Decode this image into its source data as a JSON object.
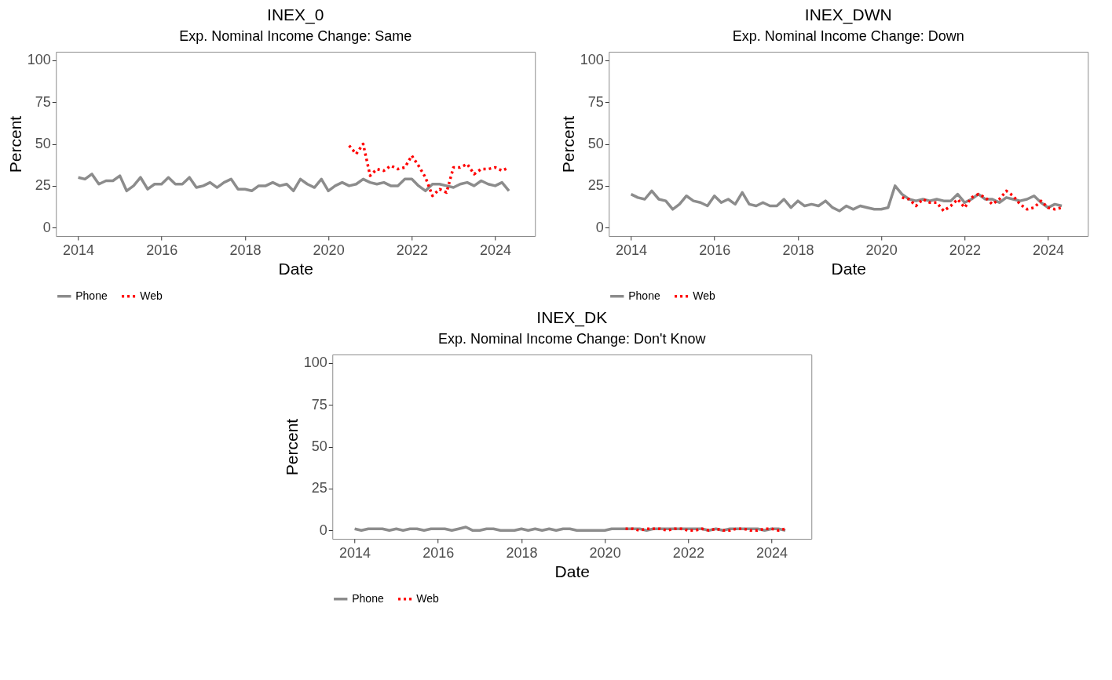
{
  "chart_data": [
    {
      "type": "line",
      "title": "INEX_0",
      "subtitle": "Exp. Nominal Income Change: Same",
      "xlabel": "Date",
      "ylabel": "Percent",
      "xlim": [
        "2013-06-20",
        "2024-12-15"
      ],
      "xticks": [
        "2014",
        "2016",
        "2018",
        "2020",
        "2022",
        "2024"
      ],
      "ylim": [
        -5,
        105
      ],
      "yticks": [
        0,
        25,
        50,
        75,
        100
      ],
      "grid": false,
      "legend": "bottom",
      "x": [
        "2014-01",
        "2014-03",
        "2014-05",
        "2014-07",
        "2014-09",
        "2014-11",
        "2015-01",
        "2015-03",
        "2015-05",
        "2015-07",
        "2015-09",
        "2015-11",
        "2016-01",
        "2016-03",
        "2016-05",
        "2016-07",
        "2016-09",
        "2016-11",
        "2017-01",
        "2017-03",
        "2017-05",
        "2017-07",
        "2017-09",
        "2017-11",
        "2018-01",
        "2018-03",
        "2018-05",
        "2018-07",
        "2018-09",
        "2018-11",
        "2019-01",
        "2019-03",
        "2019-05",
        "2019-07",
        "2019-09",
        "2019-11",
        "2020-01",
        "2020-03",
        "2020-05",
        "2020-07",
        "2020-09",
        "2020-11",
        "2021-01",
        "2021-03",
        "2021-05",
        "2021-07",
        "2021-09",
        "2021-11",
        "2022-01",
        "2022-03",
        "2022-05",
        "2022-07",
        "2022-09",
        "2022-11",
        "2023-01",
        "2023-03",
        "2023-05",
        "2023-07",
        "2023-09",
        "2023-11",
        "2024-01",
        "2024-03",
        "2024-05"
      ],
      "series": [
        {
          "name": "Phone",
          "color": "#8c8c8c",
          "line_style": "solid",
          "values": [
            30,
            29,
            32,
            26,
            28,
            28,
            31,
            22,
            25,
            30,
            23,
            26,
            26,
            30,
            26,
            26,
            30,
            24,
            25,
            27,
            24,
            27,
            29,
            23,
            23,
            22,
            25,
            25,
            27,
            25,
            26,
            22,
            29,
            26,
            24,
            29,
            22,
            25,
            27,
            25,
            26,
            29,
            27,
            26,
            27,
            25,
            25,
            29,
            29,
            25,
            22,
            26,
            26,
            25,
            24,
            26,
            27,
            25,
            28,
            26,
            25,
            27,
            22
          ]
        },
        {
          "name": "Web",
          "color": "#ff0000",
          "line_style": "dotted",
          "x": [
            "2020-07",
            "2020-09",
            "2020-11",
            "2021-01",
            "2021-03",
            "2021-05",
            "2021-07",
            "2021-09",
            "2021-11",
            "2022-01",
            "2022-03",
            "2022-05",
            "2022-07",
            "2022-09",
            "2022-11",
            "2023-01",
            "2023-03",
            "2023-05",
            "2023-07",
            "2023-09",
            "2023-11",
            "2024-01",
            "2024-03",
            "2024-05"
          ],
          "values": [
            49,
            44,
            50,
            31,
            35,
            34,
            37,
            35,
            36,
            43,
            37,
            30,
            19,
            23,
            21,
            36,
            36,
            38,
            32,
            35,
            35,
            36,
            34,
            36
          ]
        }
      ]
    },
    {
      "type": "line",
      "title": "INEX_DWN",
      "subtitle": "Exp. Nominal Income Change: Down",
      "xlabel": "Date",
      "ylabel": "Percent",
      "xlim": [
        "2013-06-20",
        "2024-12-15"
      ],
      "xticks": [
        "2014",
        "2016",
        "2018",
        "2020",
        "2022",
        "2024"
      ],
      "ylim": [
        -5,
        105
      ],
      "yticks": [
        0,
        25,
        50,
        75,
        100
      ],
      "grid": false,
      "legend": "bottom",
      "x": [
        "2014-01",
        "2014-03",
        "2014-05",
        "2014-07",
        "2014-09",
        "2014-11",
        "2015-01",
        "2015-03",
        "2015-05",
        "2015-07",
        "2015-09",
        "2015-11",
        "2016-01",
        "2016-03",
        "2016-05",
        "2016-07",
        "2016-09",
        "2016-11",
        "2017-01",
        "2017-03",
        "2017-05",
        "2017-07",
        "2017-09",
        "2017-11",
        "2018-01",
        "2018-03",
        "2018-05",
        "2018-07",
        "2018-09",
        "2018-11",
        "2019-01",
        "2019-03",
        "2019-05",
        "2019-07",
        "2019-09",
        "2019-11",
        "2020-01",
        "2020-03",
        "2020-05",
        "2020-07",
        "2020-09",
        "2020-11",
        "2021-01",
        "2021-03",
        "2021-05",
        "2021-07",
        "2021-09",
        "2021-11",
        "2022-01",
        "2022-03",
        "2022-05",
        "2022-07",
        "2022-09",
        "2022-11",
        "2023-01",
        "2023-03",
        "2023-05",
        "2023-07",
        "2023-09",
        "2023-11",
        "2024-01",
        "2024-03",
        "2024-05"
      ],
      "series": [
        {
          "name": "Phone",
          "color": "#8c8c8c",
          "line_style": "solid",
          "values": [
            20,
            18,
            17,
            22,
            17,
            16,
            11,
            14,
            19,
            16,
            15,
            13,
            19,
            15,
            17,
            14,
            21,
            14,
            13,
            15,
            13,
            13,
            17,
            12,
            16,
            13,
            14,
            13,
            16,
            12,
            10,
            13,
            11,
            13,
            12,
            11,
            11,
            12,
            25,
            20,
            17,
            16,
            17,
            16,
            17,
            16,
            16,
            20,
            15,
            17,
            20,
            17,
            17,
            15,
            18,
            17,
            16,
            17,
            19,
            15,
            12,
            14,
            13
          ]
        },
        {
          "name": "Web",
          "color": "#ff0000",
          "line_style": "dotted",
          "x": [
            "2020-07",
            "2020-09",
            "2020-11",
            "2021-01",
            "2021-03",
            "2021-05",
            "2021-07",
            "2021-09",
            "2021-11",
            "2022-01",
            "2022-03",
            "2022-05",
            "2022-07",
            "2022-09",
            "2022-11",
            "2023-01",
            "2023-03",
            "2023-05",
            "2023-07",
            "2023-09",
            "2023-11",
            "2024-01",
            "2024-03",
            "2024-05"
          ],
          "values": [
            18,
            17,
            13,
            17,
            15,
            15,
            10,
            13,
            17,
            12,
            18,
            20,
            18,
            14,
            17,
            22,
            19,
            14,
            11,
            12,
            16,
            12,
            11,
            12
          ]
        }
      ]
    },
    {
      "type": "line",
      "title": "INEX_DK",
      "subtitle": "Exp. Nominal Income Change: Don't Know",
      "xlabel": "Date",
      "ylabel": "Percent",
      "xlim": [
        "2013-06-20",
        "2024-12-15"
      ],
      "xticks": [
        "2014",
        "2016",
        "2018",
        "2020",
        "2022",
        "2024"
      ],
      "ylim": [
        -5,
        105
      ],
      "yticks": [
        0,
        25,
        50,
        75,
        100
      ],
      "grid": false,
      "legend": "bottom",
      "x": [
        "2014-01",
        "2014-03",
        "2014-05",
        "2014-07",
        "2014-09",
        "2014-11",
        "2015-01",
        "2015-03",
        "2015-05",
        "2015-07",
        "2015-09",
        "2015-11",
        "2016-01",
        "2016-03",
        "2016-05",
        "2016-07",
        "2016-09",
        "2016-11",
        "2017-01",
        "2017-03",
        "2017-05",
        "2017-07",
        "2017-09",
        "2017-11",
        "2018-01",
        "2018-03",
        "2018-05",
        "2018-07",
        "2018-09",
        "2018-11",
        "2019-01",
        "2019-03",
        "2019-05",
        "2019-07",
        "2019-09",
        "2019-11",
        "2020-01",
        "2020-03",
        "2020-05",
        "2020-07",
        "2020-09",
        "2020-11",
        "2021-01",
        "2021-03",
        "2021-05",
        "2021-07",
        "2021-09",
        "2021-11",
        "2022-01",
        "2022-03",
        "2022-05",
        "2022-07",
        "2022-09",
        "2022-11",
        "2023-01",
        "2023-03",
        "2023-05",
        "2023-07",
        "2023-09",
        "2023-11",
        "2024-01",
        "2024-03",
        "2024-05"
      ],
      "series": [
        {
          "name": "Phone",
          "color": "#8c8c8c",
          "line_style": "solid",
          "values": [
            1,
            0,
            1,
            1,
            1,
            0,
            1,
            0,
            1,
            1,
            0,
            1,
            1,
            1,
            0,
            1,
            2,
            0,
            0,
            1,
            1,
            0,
            0,
            0,
            1,
            0,
            1,
            0,
            1,
            0,
            1,
            1,
            0,
            0,
            0,
            0,
            0,
            1,
            1,
            1,
            1,
            1,
            0,
            1,
            1,
            1,
            1,
            1,
            1,
            1,
            1,
            0,
            1,
            0,
            1,
            1,
            1,
            1,
            1,
            0,
            1,
            1,
            0
          ]
        },
        {
          "name": "Web",
          "color": "#ff0000",
          "line_style": "dotted",
          "x": [
            "2020-07",
            "2020-09",
            "2020-11",
            "2021-01",
            "2021-03",
            "2021-05",
            "2021-07",
            "2021-09",
            "2021-11",
            "2022-01",
            "2022-03",
            "2022-05",
            "2022-07",
            "2022-09",
            "2022-11",
            "2023-01",
            "2023-03",
            "2023-05",
            "2023-07",
            "2023-09",
            "2023-11",
            "2024-01",
            "2024-03",
            "2024-05"
          ],
          "values": [
            1,
            1,
            0,
            1,
            1,
            1,
            0,
            1,
            1,
            0,
            0,
            1,
            0,
            1,
            0,
            0,
            1,
            1,
            0,
            0,
            1,
            1,
            0,
            1
          ]
        }
      ]
    }
  ]
}
